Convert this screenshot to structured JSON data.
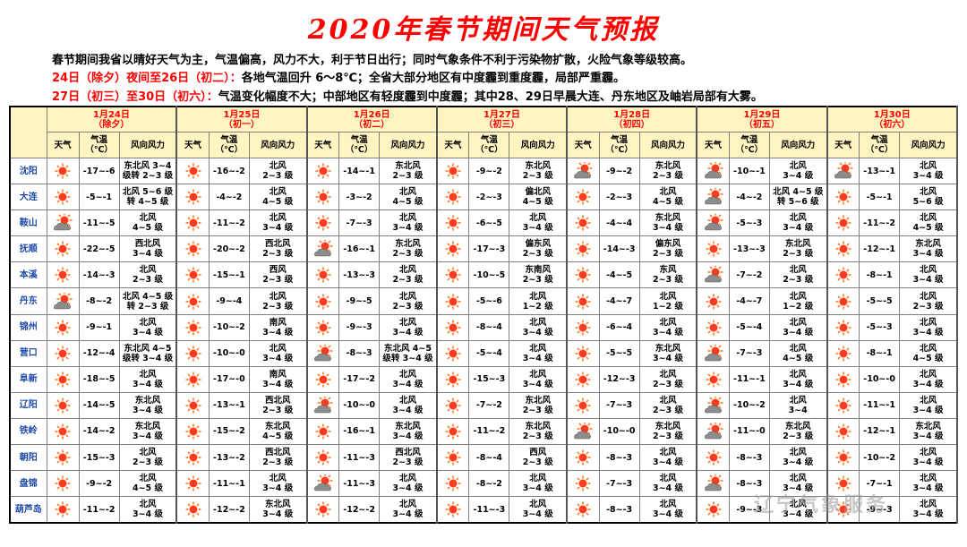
{
  "title": "2020年春节期间天气预报",
  "intro": {
    "line1": "春节期间我省以晴好天气为主，气温偏高，风力不大，利于节日出行；同时气象条件不利于污染物扩散，火险气象等级较高。",
    "line2_red": "24日（除夕）夜间至26日（初二）：",
    "line2_black": "各地气温回升 6～8℃；全省大部分地区有中度霾到重度霾，局部严重霾。",
    "line3_red": "27日（初三）至30日（初六）：",
    "line3_black": "气温变化幅度不大；中部地区有轻度霾到中度霾；其中28、29日早晨大连、丹东地区及岫岩局部有大雾。"
  },
  "col_headers": {
    "weather": "天气",
    "temp_line1": "气温",
    "temp_line2": "（℃）",
    "wind": "风向风力"
  },
  "days": [
    {
      "date": "1月24日",
      "lunar": "（除夕）"
    },
    {
      "date": "1月25日",
      "lunar": "（初一）"
    },
    {
      "date": "1月26日",
      "lunar": "（初二）"
    },
    {
      "date": "1月27日",
      "lunar": "（初三）"
    },
    {
      "date": "1月28日",
      "lunar": "（初四）"
    },
    {
      "date": "1月29日",
      "lunar": "（初五）"
    },
    {
      "date": "1月30日",
      "lunar": "（初六）"
    }
  ],
  "rows": [
    {
      "city": "沈阳",
      "cells": [
        {
          "w": "sunny",
          "t": "-17~-6",
          "wind": [
            "东北风 3~4",
            "级转 2~3 级"
          ]
        },
        {
          "w": "sunny",
          "t": "-16~-2",
          "wind": [
            "北风",
            "2~3 级"
          ]
        },
        {
          "w": "sunny",
          "t": "-14~-1",
          "wind": [
            "东北风",
            "2~3 级"
          ]
        },
        {
          "w": "sunny",
          "t": "-9~-2",
          "wind": [
            "东北风",
            "2~3 级"
          ]
        },
        {
          "w": "cloudy",
          "t": "-9~-2",
          "wind": [
            "东北风",
            "2~3 级"
          ]
        },
        {
          "w": "cloudy",
          "t": "-10~-1",
          "wind": [
            "北风",
            "3~4 级"
          ]
        },
        {
          "w": "cloudy",
          "t": "-13~-1",
          "wind": [
            "北风",
            "3~4 级"
          ]
        }
      ]
    },
    {
      "city": "大连",
      "cells": [
        {
          "w": "sunny",
          "t": "-5~-1",
          "wind": [
            "北风 5~6 级",
            "转 4~5 级"
          ]
        },
        {
          "w": "sunny",
          "t": "-4~-2",
          "wind": [
            "北风",
            "4~5 级"
          ]
        },
        {
          "w": "sunny",
          "t": "-3~-2",
          "wind": [
            "北风",
            "4~5 级"
          ]
        },
        {
          "w": "sunny",
          "t": "-2~-3",
          "wind": [
            "偏北风",
            "4~5 级"
          ]
        },
        {
          "w": "sunny",
          "t": "-2~-3",
          "wind": [
            "北风",
            "4~5 级"
          ]
        },
        {
          "w": "cloudy",
          "t": "-4~-2",
          "wind": [
            "北风 4~5 级",
            "转 5~6 级"
          ]
        },
        {
          "w": "sunny",
          "t": "-5~-1",
          "wind": [
            "北风",
            "5~6 级"
          ]
        }
      ]
    },
    {
      "city": "鞍山",
      "cells": [
        {
          "w": "cloudy",
          "t": "-11~-5",
          "wind": [
            "北风",
            "4~5 级"
          ]
        },
        {
          "w": "sunny",
          "t": "-11~-2",
          "wind": [
            "北风",
            "3~4 级"
          ]
        },
        {
          "w": "sunny",
          "t": "-7~-3",
          "wind": [
            "北风",
            "3~4 级"
          ]
        },
        {
          "w": "sunny",
          "t": "-6~-5",
          "wind": [
            "北风",
            "3~4 级"
          ]
        },
        {
          "w": "sunny",
          "t": "-4~-4",
          "wind": [
            "东北风",
            "3~4 级"
          ]
        },
        {
          "w": "cloudy",
          "t": "-5~-3",
          "wind": [
            "北风",
            "3~4 级"
          ]
        },
        {
          "w": "sunny",
          "t": "-11~-2",
          "wind": [
            "北风",
            "4~5 级"
          ]
        }
      ]
    },
    {
      "city": "抚顺",
      "cells": [
        {
          "w": "sunny",
          "t": "-22~-5",
          "wind": [
            "西北风",
            "3~4 级"
          ]
        },
        {
          "w": "sunny",
          "t": "-20~-2",
          "wind": [
            "西北风",
            "2~3 级"
          ]
        },
        {
          "w": "cloudy",
          "t": "-16~-1",
          "wind": [
            "东北风",
            "2~3 级"
          ]
        },
        {
          "w": "sunny",
          "t": "-17~-3",
          "wind": [
            "偏东风",
            "2~3 级"
          ]
        },
        {
          "w": "sunny",
          "t": "-14~-3",
          "wind": [
            "偏东风",
            "2~3 级"
          ]
        },
        {
          "w": "sunny",
          "t": "-13~-3",
          "wind": [
            "东北风",
            "2~3 级"
          ]
        },
        {
          "w": "sunny",
          "t": "-12~-1",
          "wind": [
            "东北风",
            "3~4 级"
          ]
        }
      ]
    },
    {
      "city": "本溪",
      "cells": [
        {
          "w": "sunny",
          "t": "-14~-3",
          "wind": [
            "北风",
            "2~3 级"
          ]
        },
        {
          "w": "sunny",
          "t": "-15~-1",
          "wind": [
            "西风",
            "2~3 级"
          ]
        },
        {
          "w": "sunny",
          "t": "-13~-3",
          "wind": [
            "北风",
            "2~3 级"
          ]
        },
        {
          "w": "sunny",
          "t": "-10~-5",
          "wind": [
            "东南风",
            "2~3 级"
          ]
        },
        {
          "w": "sunny",
          "t": "-4~-5",
          "wind": [
            "东风",
            "2~3 级"
          ]
        },
        {
          "w": "cloudy",
          "t": "-7~-2",
          "wind": [
            "北风",
            "2~3 级"
          ]
        },
        {
          "w": "sunny",
          "t": "-8~-1",
          "wind": [
            "北风",
            "3~4 级"
          ]
        }
      ]
    },
    {
      "city": "丹东",
      "cells": [
        {
          "w": "cloudy",
          "t": "-8~-2",
          "wind": [
            "北风 4~5 级",
            "转 2~3 级"
          ]
        },
        {
          "w": "sunny",
          "t": "-9~-4",
          "wind": [
            "北风",
            "2~3 级"
          ]
        },
        {
          "w": "sunny",
          "t": "-9~-5",
          "wind": [
            "北风",
            "2~3 级"
          ]
        },
        {
          "w": "sunny",
          "t": "-5~-6",
          "wind": [
            "北风",
            "1~2 级"
          ]
        },
        {
          "w": "sunny",
          "t": "-4~-7",
          "wind": [
            "北风",
            "1~2 级"
          ]
        },
        {
          "w": "sunny",
          "t": "-4~-7",
          "wind": [
            "北风",
            "1~2 级"
          ]
        },
        {
          "w": "sunny",
          "t": "-5~-5",
          "wind": [
            "北风",
            "2~3 级"
          ]
        }
      ]
    },
    {
      "city": "锦州",
      "cells": [
        {
          "w": "sunny",
          "t": "-9~-1",
          "wind": [
            "北风",
            "3~4 级"
          ]
        },
        {
          "w": "sunny",
          "t": "-10~-2",
          "wind": [
            "南风",
            "3~4 级"
          ]
        },
        {
          "w": "sunny",
          "t": "-9~-3",
          "wind": [
            "北风",
            "3~4 级"
          ]
        },
        {
          "w": "sunny",
          "t": "-8~-4",
          "wind": [
            "北风",
            "3~4 级"
          ]
        },
        {
          "w": "sunny",
          "t": "-6~-4",
          "wind": [
            "北风",
            "3~4 级"
          ]
        },
        {
          "w": "sunny",
          "t": "-5~-4",
          "wind": [
            "北风",
            "3~4 级"
          ]
        },
        {
          "w": "sunny",
          "t": "-5~-3",
          "wind": [
            "北风",
            "3~4 级"
          ]
        }
      ]
    },
    {
      "city": "营口",
      "cells": [
        {
          "w": "sunny",
          "t": "-12~-4",
          "wind": [
            "东北风 4~5",
            "级转 3~4 级"
          ]
        },
        {
          "w": "sunny",
          "t": "-10~-0",
          "wind": [
            "北风",
            "3~4 级"
          ]
        },
        {
          "w": "cloudy",
          "t": "-8~-3",
          "wind": [
            "东北风 4~5",
            "级转 3~4 级"
          ]
        },
        {
          "w": "sunny",
          "t": "-5~-4",
          "wind": [
            "北风",
            "3~4 级"
          ]
        },
        {
          "w": "sunny",
          "t": "-5~-5",
          "wind": [
            "东北风",
            "3~4 级"
          ]
        },
        {
          "w": "cloudy",
          "t": "-7~-3",
          "wind": [
            "北风",
            "4~5 级"
          ]
        },
        {
          "w": "sunny",
          "t": "-8~-1",
          "wind": [
            "北风",
            "4~5 级"
          ]
        }
      ]
    },
    {
      "city": "阜新",
      "cells": [
        {
          "w": "sunny",
          "t": "-18~-5",
          "wind": [
            "北风",
            "3~4 级"
          ]
        },
        {
          "w": "sunny",
          "t": "-17~-0",
          "wind": [
            "南风",
            "3~4 级"
          ]
        },
        {
          "w": "sunny",
          "t": "-17~-2",
          "wind": [
            "北风",
            "3~4 级"
          ]
        },
        {
          "w": "sunny",
          "t": "-15~-3",
          "wind": [
            "北风",
            "3~4 级"
          ]
        },
        {
          "w": "sunny",
          "t": "-12~-3",
          "wind": [
            "北风",
            "2~3 级"
          ]
        },
        {
          "w": "sunny",
          "t": "-11~-1",
          "wind": [
            "北风",
            "3~4 级"
          ]
        },
        {
          "w": "sunny",
          "t": "-10~-0",
          "wind": [
            "北风",
            "3~4 级"
          ]
        }
      ]
    },
    {
      "city": "辽阳",
      "cells": [
        {
          "w": "sunny",
          "t": "-14~-5",
          "wind": [
            "东北风",
            "3~4 级"
          ]
        },
        {
          "w": "sunny",
          "t": "-13~-1",
          "wind": [
            "西北风",
            "2~3 级"
          ]
        },
        {
          "w": "cloudy",
          "t": "-10~-0",
          "wind": [
            "北风",
            "3~4 级"
          ]
        },
        {
          "w": "sunny",
          "t": "-7~-2",
          "wind": [
            "东北风",
            "2~3 级"
          ]
        },
        {
          "w": "sunny",
          "t": "-7~-3",
          "wind": [
            "北风",
            "2~3 级"
          ]
        },
        {
          "w": "cloudy",
          "t": "-10~-2",
          "wind": [
            "北风",
            "3~4"
          ]
        },
        {
          "w": "sunny",
          "t": "-11~-1",
          "wind": [
            "北风",
            "3~4 级"
          ]
        }
      ]
    },
    {
      "city": "铁岭",
      "cells": [
        {
          "w": "sunny",
          "t": "-14~-2",
          "wind": [
            "东北风",
            "3~4 级"
          ]
        },
        {
          "w": "sunny",
          "t": "-15~-2",
          "wind": [
            "东北风",
            "4~5 级"
          ]
        },
        {
          "w": "sunny",
          "t": "-16~-1",
          "wind": [
            "东北风",
            "3~4 级"
          ]
        },
        {
          "w": "sunny",
          "t": "-11~-2",
          "wind": [
            "东北风",
            "2~3 级"
          ]
        },
        {
          "w": "cloudy",
          "t": "-10~-0",
          "wind": [
            "东北风",
            "2~3 级"
          ]
        },
        {
          "w": "cloudy",
          "t": "-11~-0",
          "wind": [
            "东北风",
            "2~3 级"
          ]
        },
        {
          "w": "sunny",
          "t": "-12~-1",
          "wind": [
            "东北风",
            "3~4 级"
          ]
        }
      ]
    },
    {
      "city": "朝阳",
      "cells": [
        {
          "w": "sunny",
          "t": "-15~-3",
          "wind": [
            "北风",
            "2~3 级"
          ]
        },
        {
          "w": "sunny",
          "t": "-13~-2",
          "wind": [
            "西北风",
            "2~3 级"
          ]
        },
        {
          "w": "sunny",
          "t": "-11~-3",
          "wind": [
            "西北风",
            "2~3 级"
          ]
        },
        {
          "w": "sunny",
          "t": "-8~-4",
          "wind": [
            "西风",
            "2~3 级"
          ]
        },
        {
          "w": "sunny",
          "t": "-8~-3",
          "wind": [
            "北风",
            "3~4 级"
          ]
        },
        {
          "w": "sunny",
          "t": "-8~-3",
          "wind": [
            "北风",
            "3~4 级"
          ]
        },
        {
          "w": "sunny",
          "t": "-10~-2",
          "wind": [
            "北风",
            "3~4 级"
          ]
        }
      ]
    },
    {
      "city": "盘锦",
      "cells": [
        {
          "w": "sunny",
          "t": "-9~-2",
          "wind": [
            "北风",
            "4~5 级"
          ]
        },
        {
          "w": "sunny",
          "t": "-11~-1",
          "wind": [
            "北风",
            "3~4 级"
          ]
        },
        {
          "w": "cloudy",
          "t": "-11~-3",
          "wind": [
            "北风",
            "3~4 级"
          ]
        },
        {
          "w": "sunny",
          "t": "-8~-2",
          "wind": [
            "北风",
            "3~4 级"
          ]
        },
        {
          "w": "sunny",
          "t": "-7~-3",
          "wind": [
            "北风",
            "3~4 级"
          ]
        },
        {
          "w": "cloudy",
          "t": "-8~-3",
          "wind": [
            "北风",
            "3~4 级"
          ]
        },
        {
          "w": "sunny",
          "t": "-7~-1",
          "wind": [
            "北风",
            "3~4 级"
          ]
        }
      ]
    },
    {
      "city": "葫芦岛",
      "cells": [
        {
          "w": "sunny",
          "t": "-11~-2",
          "wind": [
            "北风",
            "3~4 级"
          ]
        },
        {
          "w": "sunny",
          "t": "-12~-2",
          "wind": [
            "东北风",
            "3~4 级"
          ]
        },
        {
          "w": "sunny",
          "t": "-12~-2",
          "wind": [
            "北风",
            "3~4 级"
          ]
        },
        {
          "w": "sunny",
          "t": "-11~-3",
          "wind": [
            "北风",
            "3~4 级"
          ]
        },
        {
          "w": "sunny",
          "t": "-8~-3",
          "wind": [
            "北风",
            "3~4 级"
          ]
        },
        {
          "w": "sunny",
          "t": "-9~-3",
          "wind": [
            "北风",
            "3~4 级"
          ]
        },
        {
          "w": "sunny",
          "t": "-9~-3",
          "wind": [
            "北风",
            "3~4 级"
          ]
        }
      ]
    }
  ],
  "icons": {
    "sunny": "sun-icon",
    "cloudy": "sun-behind-cloud-icon"
  },
  "colors": {
    "title": "#ff0000",
    "header_bg": "#fff4c2",
    "city": "#1f4aa8",
    "sun": "#ff3b1f",
    "cloud": "#8c8c8c"
  },
  "watermark": "辽宁气象服务"
}
